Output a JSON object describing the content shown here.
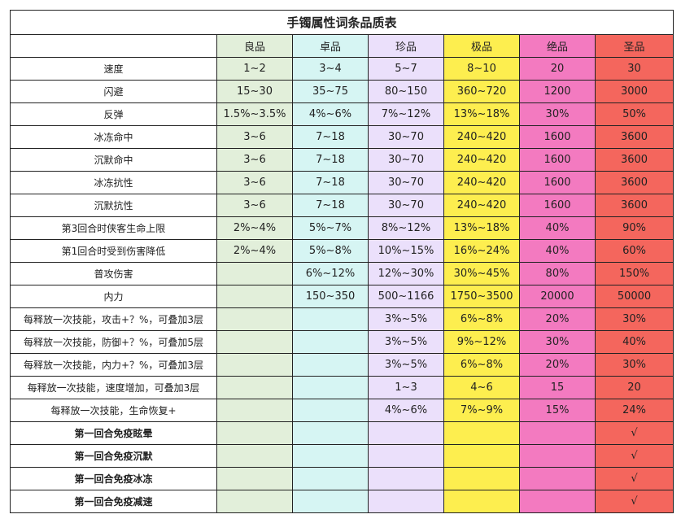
{
  "title": "手镯属性词条品质表",
  "tiers": [
    {
      "name": "良品",
      "color": "#e2efda"
    },
    {
      "name": "卓品",
      "color": "#d6f5f3"
    },
    {
      "name": "珍品",
      "color": "#ebe0fb"
    },
    {
      "name": "极品",
      "color": "#fdee4f"
    },
    {
      "name": "绝品",
      "color": "#f37ac0"
    },
    {
      "name": "圣品",
      "color": "#f4665d"
    }
  ],
  "rows": [
    {
      "label": "速度",
      "values": [
        "1~2",
        "3~4",
        "5~7",
        "8~10",
        "20",
        "30"
      ]
    },
    {
      "label": "闪避",
      "values": [
        "15~30",
        "35~75",
        "80~150",
        "360~720",
        "1200",
        "3000"
      ]
    },
    {
      "label": "反弹",
      "values": [
        "1.5%~3.5%",
        "4%~6%",
        "7%~12%",
        "13%~18%",
        "30%",
        "50%"
      ]
    },
    {
      "label": "冰冻命中",
      "values": [
        "3~6",
        "7~18",
        "30~70",
        "240~420",
        "1600",
        "3600"
      ]
    },
    {
      "label": "沉默命中",
      "values": [
        "3~6",
        "7~18",
        "30~70",
        "240~420",
        "1600",
        "3600"
      ]
    },
    {
      "label": "冰冻抗性",
      "values": [
        "3~6",
        "7~18",
        "30~70",
        "240~420",
        "1600",
        "3600"
      ]
    },
    {
      "label": "沉默抗性",
      "values": [
        "3~6",
        "7~18",
        "30~70",
        "240~420",
        "1600",
        "3600"
      ]
    },
    {
      "label": "第3回合时侠客生命上限",
      "values": [
        "2%~4%",
        "5%~7%",
        "8%~12%",
        "13%~18%",
        "40%",
        "90%"
      ]
    },
    {
      "label": "第1回合时受到伤害降低",
      "values": [
        "2%~4%",
        "5%~8%",
        "10%~15%",
        "16%~24%",
        "40%",
        "60%"
      ]
    },
    {
      "label": "普攻伤害",
      "values": [
        "",
        "6%~12%",
        "12%~30%",
        "30%~45%",
        "80%",
        "150%"
      ]
    },
    {
      "label": "内力",
      "values": [
        "",
        "150~350",
        "500~1166",
        "1750~3500",
        "20000",
        "50000"
      ]
    },
    {
      "label": "每释放一次技能，攻击+？%，可叠加3层",
      "values": [
        "",
        "",
        "3%~5%",
        "6%~8%",
        "20%",
        "30%"
      ]
    },
    {
      "label": "每释放一次技能，防御+？%，可叠加5层",
      "values": [
        "",
        "",
        "3%~5%",
        "9%~12%",
        "30%",
        "40%"
      ]
    },
    {
      "label": "每释放一次技能，内力+？%，可叠加3层",
      "values": [
        "",
        "",
        "3%~5%",
        "6%~8%",
        "20%",
        "30%"
      ]
    },
    {
      "label": "每释放一次技能，速度增加，可叠加3层",
      "values": [
        "",
        "",
        "1~3",
        "4~6",
        "15",
        "20"
      ]
    },
    {
      "label": "每释放一次技能，生命恢复+",
      "values": [
        "",
        "",
        "4%~6%",
        "7%~9%",
        "15%",
        "24%"
      ]
    },
    {
      "label": "第一回合免疫眩晕",
      "bold": true,
      "values": [
        "",
        "",
        "",
        "",
        "",
        "√"
      ]
    },
    {
      "label": "第一回合免疫沉默",
      "bold": true,
      "values": [
        "",
        "",
        "",
        "",
        "",
        "√"
      ]
    },
    {
      "label": "第一回合免疫冰冻",
      "bold": true,
      "values": [
        "",
        "",
        "",
        "",
        "",
        "√"
      ]
    },
    {
      "label": "第一回合免疫减速",
      "bold": true,
      "values": [
        "",
        "",
        "",
        "",
        "",
        "√"
      ]
    }
  ]
}
